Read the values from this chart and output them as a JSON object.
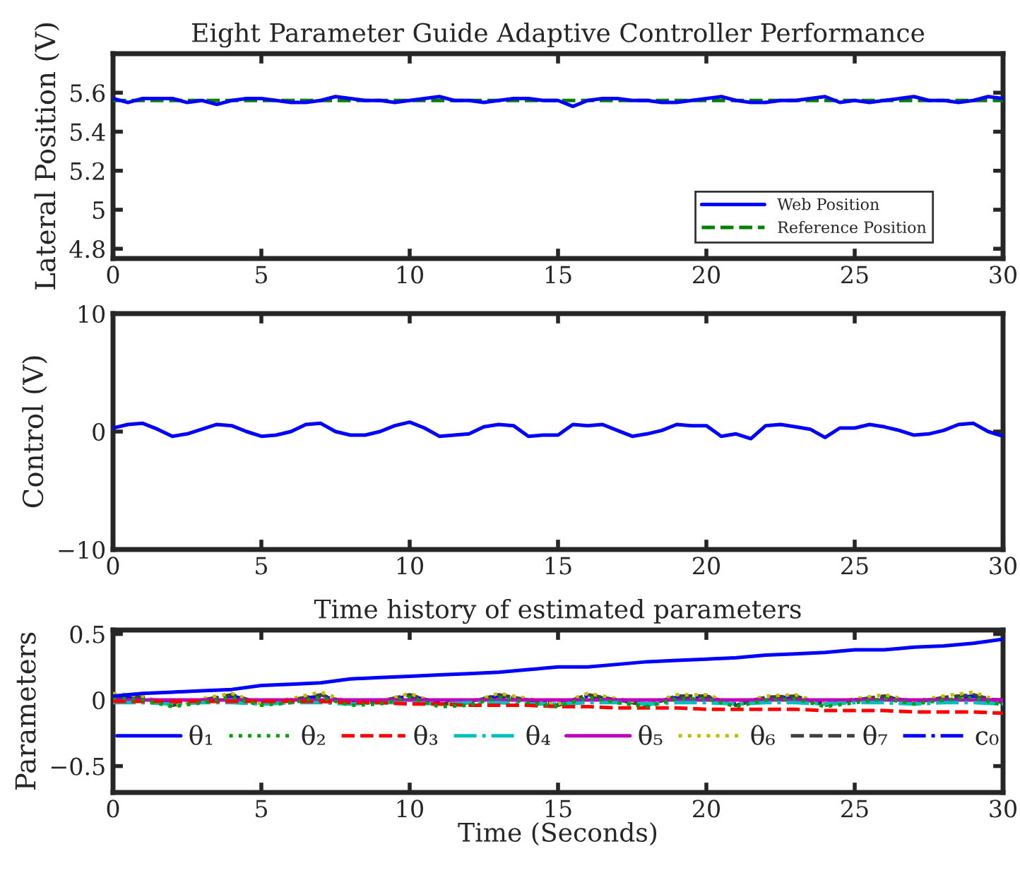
{
  "chart_data": [
    {
      "type": "line",
      "title": "Eight Parameter Guide Adaptive Controller Performance",
      "ylabel": "Lateral Position (V)",
      "xlim": [
        0,
        30
      ],
      "xticks": [
        0,
        5,
        10,
        15,
        20,
        25,
        30
      ],
      "ylim": [
        4.75,
        5.8
      ],
      "yticks": [
        4.8,
        5,
        5.2,
        5.4,
        5.6
      ],
      "legend": "bottom right",
      "grid": false,
      "x": [
        0,
        0.5,
        1,
        1.5,
        2,
        2.5,
        3,
        3.5,
        4,
        4.5,
        5,
        5.5,
        6,
        6.5,
        7,
        7.5,
        8,
        8.5,
        9,
        9.5,
        10,
        10.5,
        11,
        11.5,
        12,
        12.5,
        13,
        13.5,
        14,
        14.5,
        15,
        15.5,
        16,
        16.5,
        17,
        17.5,
        18,
        18.5,
        19,
        19.5,
        20,
        20.5,
        21,
        21.5,
        22,
        22.5,
        23,
        23.5,
        24,
        24.5,
        25,
        25.5,
        26,
        26.5,
        27,
        27.5,
        28,
        28.5,
        29,
        29.5,
        30
      ],
      "series": [
        {
          "name": "Web Position",
          "color": "#0000ff",
          "line_style": "solid",
          "values": [
            5.57,
            5.55,
            5.57,
            5.57,
            5.57,
            5.55,
            5.56,
            5.54,
            5.56,
            5.57,
            5.57,
            5.56,
            5.55,
            5.55,
            5.56,
            5.58,
            5.57,
            5.56,
            5.56,
            5.55,
            5.56,
            5.57,
            5.58,
            5.56,
            5.56,
            5.55,
            5.56,
            5.57,
            5.57,
            5.56,
            5.56,
            5.53,
            5.56,
            5.57,
            5.57,
            5.56,
            5.56,
            5.55,
            5.55,
            5.56,
            5.57,
            5.58,
            5.56,
            5.55,
            5.55,
            5.56,
            5.56,
            5.57,
            5.58,
            5.55,
            5.56,
            5.55,
            5.56,
            5.57,
            5.58,
            5.56,
            5.56,
            5.55,
            5.56,
            5.58,
            5.57
          ]
        },
        {
          "name": "Reference Position",
          "color": "#008000",
          "line_style": "dashed",
          "values": [
            5.56,
            5.56,
            5.56,
            5.56,
            5.56,
            5.56,
            5.56,
            5.56,
            5.56,
            5.56,
            5.56,
            5.56,
            5.56,
            5.56,
            5.56,
            5.56,
            5.56,
            5.56,
            5.56,
            5.56,
            5.56,
            5.56,
            5.56,
            5.56,
            5.56,
            5.56,
            5.56,
            5.56,
            5.56,
            5.56,
            5.56,
            5.56,
            5.56,
            5.56,
            5.56,
            5.56,
            5.56,
            5.56,
            5.56,
            5.56,
            5.56,
            5.56,
            5.56,
            5.56,
            5.56,
            5.56,
            5.56,
            5.56,
            5.56,
            5.56,
            5.56,
            5.56,
            5.56,
            5.56,
            5.56,
            5.56,
            5.56,
            5.56,
            5.56,
            5.56,
            5.56
          ]
        }
      ]
    },
    {
      "type": "line",
      "ylabel": "Control (V)",
      "xlim": [
        0,
        30
      ],
      "xticks": [
        0,
        5,
        10,
        15,
        20,
        25,
        30
      ],
      "ylim": [
        -10,
        10
      ],
      "yticks": [
        {
          "value": -10,
          "label": "−10"
        },
        0,
        10
      ],
      "grid": false,
      "x": [
        0,
        0.5,
        1,
        1.5,
        2,
        2.5,
        3,
        3.5,
        4,
        4.5,
        5,
        5.5,
        6,
        6.5,
        7,
        7.5,
        8,
        8.5,
        9,
        9.5,
        10,
        10.5,
        11,
        11.5,
        12,
        12.5,
        13,
        13.5,
        14,
        14.5,
        15,
        15.5,
        16,
        16.5,
        17,
        17.5,
        18,
        18.5,
        19,
        19.5,
        20,
        20.5,
        21,
        21.5,
        22,
        22.5,
        23,
        23.5,
        24,
        24.5,
        25,
        25.5,
        26,
        26.5,
        27,
        27.5,
        28,
        28.5,
        29,
        29.5,
        30
      ],
      "series": [
        {
          "color": "#0000ff",
          "line_style": "solid",
          "values": [
            0.3,
            0.6,
            0.7,
            0.2,
            -0.4,
            -0.2,
            0.2,
            0.6,
            0.5,
            0,
            -0.4,
            -0.3,
            0,
            0.6,
            0.7,
            0,
            -0.3,
            -0.3,
            0,
            0.5,
            0.8,
            0.3,
            -0.4,
            -0.3,
            -0.2,
            0.4,
            0.6,
            0.5,
            -0.4,
            -0.3,
            -0.3,
            0.6,
            0.5,
            0.6,
            0.1,
            -0.4,
            -0.2,
            0.1,
            0.6,
            0.5,
            0.5,
            -0.4,
            -0.2,
            -0.6,
            0.5,
            0.6,
            0.4,
            0.2,
            -0.5,
            0.3,
            0.3,
            0.6,
            0.4,
            0.1,
            -0.3,
            -0.2,
            0.1,
            0.6,
            0.7,
            0,
            -0.4
          ]
        }
      ]
    },
    {
      "type": "line",
      "title": "Time history of estimated parameters",
      "xlabel": "Time (Seconds)",
      "ylabel": "Parameters",
      "xlim": [
        0,
        30
      ],
      "xticks": [
        0,
        5,
        10,
        15,
        20,
        25,
        30
      ],
      "ylim": [
        -0.7,
        0.53
      ],
      "yticks": [
        {
          "value": -0.5,
          "label": "−0.5"
        },
        0,
        0.5
      ],
      "legend": "bottom",
      "grid": false,
      "x": [
        0,
        1,
        2,
        3,
        4,
        5,
        6,
        7,
        8,
        9,
        10,
        11,
        12,
        13,
        14,
        15,
        16,
        17,
        18,
        19,
        20,
        21,
        22,
        23,
        24,
        25,
        26,
        27,
        28,
        29,
        30
      ],
      "series": [
        {
          "name": "θ₁",
          "color": "#0000ff",
          "line_style": "solid",
          "values": [
            0.03,
            0.05,
            0.06,
            0.07,
            0.08,
            0.11,
            0.12,
            0.13,
            0.16,
            0.17,
            0.18,
            0.19,
            0.2,
            0.21,
            0.23,
            0.25,
            0.25,
            0.27,
            0.29,
            0.3,
            0.31,
            0.32,
            0.34,
            0.35,
            0.36,
            0.38,
            0.38,
            0.4,
            0.41,
            0.43,
            0.46
          ]
        },
        {
          "name": "θ₂",
          "color": "#00a000",
          "line_style": "dotted",
          "values": [
            0.02,
            0.0,
            -0.05,
            -0.02,
            0.02,
            -0.04,
            -0.02,
            0.02,
            -0.04,
            -0.03,
            0.02,
            -0.05,
            -0.04,
            0.02,
            -0.02,
            -0.05,
            0.02,
            -0.02,
            -0.05,
            0.01,
            0.01,
            -0.05,
            0.0,
            0.01,
            -0.05,
            -0.02,
            0.01,
            -0.03,
            0.0,
            0.02,
            -0.04
          ]
        },
        {
          "name": "θ₃",
          "color": "#ff0000",
          "line_style": "dashed",
          "values": [
            -0.01,
            -0.01,
            -0.01,
            -0.01,
            -0.01,
            -0.01,
            -0.01,
            -0.01,
            -0.02,
            -0.02,
            -0.03,
            -0.03,
            -0.04,
            -0.04,
            -0.04,
            -0.05,
            -0.05,
            -0.06,
            -0.06,
            -0.06,
            -0.07,
            -0.07,
            -0.07,
            -0.07,
            -0.08,
            -0.08,
            -0.08,
            -0.09,
            -0.09,
            -0.09,
            -0.1
          ]
        },
        {
          "name": "θ₄",
          "color": "#00bfbf",
          "line_style": "dashdot",
          "values": [
            -0.02,
            -0.02,
            -0.03,
            -0.02,
            -0.02,
            -0.03,
            -0.02,
            -0.02,
            -0.03,
            -0.02,
            -0.02,
            -0.03,
            -0.02,
            -0.02,
            -0.03,
            -0.03,
            -0.02,
            -0.02,
            -0.03,
            -0.02,
            -0.02,
            -0.03,
            -0.02,
            -0.02,
            -0.03,
            -0.02,
            -0.02,
            -0.03,
            -0.02,
            -0.02,
            -0.03
          ]
        },
        {
          "name": "θ₅",
          "color": "#bf00bf",
          "line_style": "solid",
          "values": [
            0,
            0,
            0,
            0,
            0,
            0,
            0,
            0,
            0,
            0,
            0,
            0,
            0,
            0,
            0,
            0,
            0,
            0,
            0,
            0,
            0,
            0,
            0,
            0,
            0,
            0,
            0,
            0,
            0,
            0,
            0
          ]
        },
        {
          "name": "θ₆",
          "color": "#bfbf00",
          "line_style": "dotted",
          "values": [
            0.05,
            0.03,
            -0.05,
            0.01,
            0.05,
            -0.03,
            0.01,
            0.06,
            -0.02,
            -0.01,
            0.05,
            -0.03,
            -0.02,
            0.05,
            0.01,
            -0.03,
            0.05,
            0.01,
            -0.03,
            0.04,
            0.04,
            -0.03,
            0.03,
            0.04,
            -0.03,
            0.01,
            0.04,
            -0.01,
            0.03,
            0.06,
            -0.02
          ]
        },
        {
          "name": "θ₇",
          "color": "#404040",
          "line_style": "dashed",
          "values": [
            0.03,
            0.02,
            -0.04,
            0.0,
            0.04,
            -0.03,
            0.0,
            0.04,
            -0.03,
            -0.01,
            0.04,
            -0.03,
            -0.02,
            0.04,
            0.0,
            -0.04,
            0.04,
            0.0,
            -0.04,
            0.03,
            0.03,
            -0.04,
            0.02,
            0.03,
            -0.04,
            0.0,
            0.03,
            -0.02,
            0.02,
            0.04,
            -0.02
          ]
        },
        {
          "name": "c₀",
          "color": "#0000ff",
          "line_style": "dashdot",
          "values": [
            0.02,
            0.01,
            -0.03,
            0.0,
            0.03,
            -0.02,
            0.0,
            0.03,
            -0.02,
            -0.01,
            0.03,
            -0.02,
            -0.01,
            0.03,
            0.0,
            -0.03,
            0.03,
            0.0,
            -0.03,
            0.02,
            0.02,
            -0.03,
            0.02,
            0.02,
            -0.03,
            0.0,
            0.02,
            -0.01,
            0.01,
            0.03,
            -0.01
          ]
        }
      ]
    }
  ]
}
